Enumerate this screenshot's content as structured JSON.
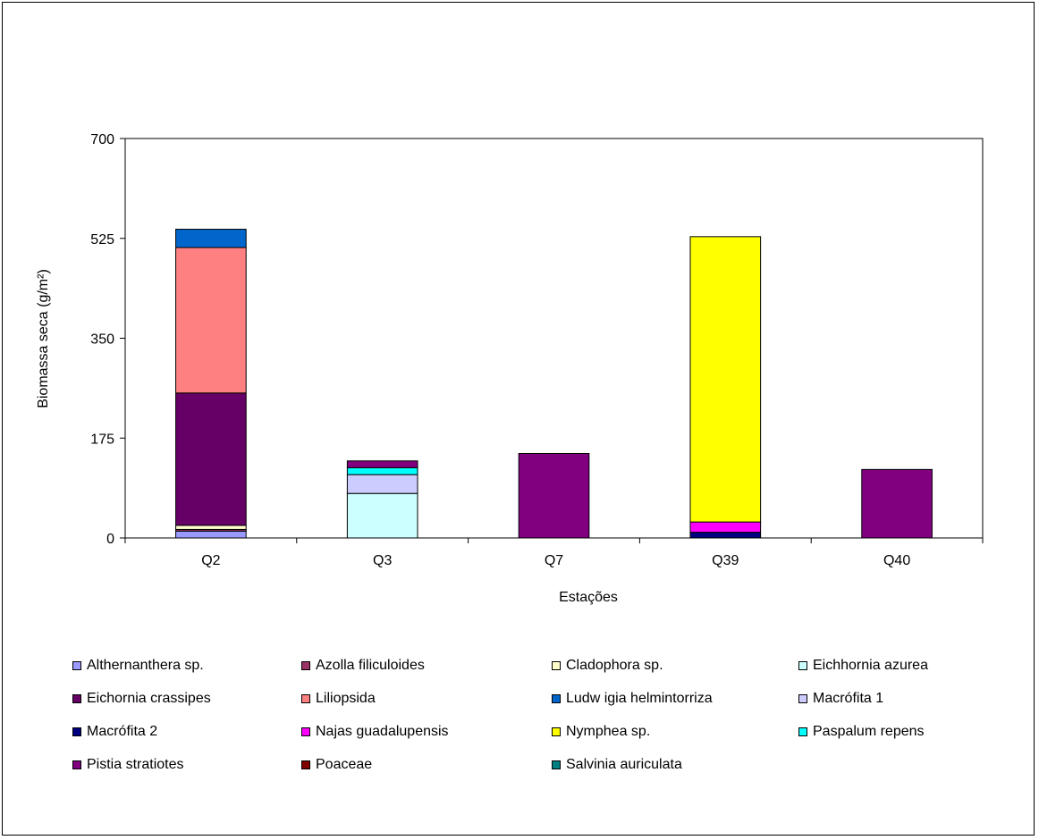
{
  "chart_data": {
    "type": "bar",
    "stacked": true,
    "title": "",
    "xlabel": "Estações",
    "ylabel": "Biomassa seca (g/m²)",
    "ylim": [
      0,
      700
    ],
    "yticks": [
      0,
      175,
      350,
      525,
      700
    ],
    "grid": false,
    "legend_position": "bottom",
    "categories": [
      "Q2",
      "Q3",
      "Q7",
      "Q39",
      "Q40"
    ],
    "series": [
      {
        "name": "Althernanthera sp.",
        "color": "#9999FF",
        "values": [
          12,
          0,
          0,
          0,
          0
        ]
      },
      {
        "name": "Azolla filiculoides",
        "color": "#993366",
        "values": [
          3,
          0,
          0,
          0,
          0
        ]
      },
      {
        "name": "Cladophora sp.",
        "color": "#FFFFCC",
        "values": [
          7,
          0,
          0,
          0,
          0
        ]
      },
      {
        "name": "Eichhornia azurea",
        "color": "#CCFFFF",
        "values": [
          0,
          78,
          0,
          0,
          0
        ]
      },
      {
        "name": "Eichornia crassipes",
        "color": "#660066",
        "values": [
          232,
          0,
          0,
          0,
          0
        ]
      },
      {
        "name": "Liliopsida",
        "color": "#FF8080",
        "values": [
          255,
          0,
          0,
          0,
          0
        ]
      },
      {
        "name": "Ludw igia helmintorriza",
        "color": "#0066CC",
        "values": [
          32,
          0,
          0,
          0,
          0
        ]
      },
      {
        "name": "Macrófita 1",
        "color": "#CCCCFF",
        "values": [
          0,
          33,
          0,
          0,
          0
        ]
      },
      {
        "name": "Macrófita 2",
        "color": "#000080",
        "values": [
          0,
          0,
          0,
          10,
          0
        ]
      },
      {
        "name": "Najas guadalupensis",
        "color": "#FF00FF",
        "values": [
          0,
          0,
          0,
          18,
          0
        ]
      },
      {
        "name": "Nymphea sp.",
        "color": "#FFFF00",
        "values": [
          0,
          0,
          0,
          500,
          0
        ]
      },
      {
        "name": "Paspalum repens",
        "color": "#00FFFF",
        "values": [
          0,
          12,
          0,
          0,
          0
        ]
      },
      {
        "name": "Pistia stratiotes",
        "color": "#800080",
        "values": [
          0,
          12,
          148,
          0,
          120
        ]
      },
      {
        "name": "Poaceae",
        "color": "#800000",
        "values": [
          0,
          0,
          0,
          0,
          0
        ]
      },
      {
        "name": "Salvinia auriculata",
        "color": "#008080",
        "values": [
          0,
          0,
          0,
          0,
          0
        ]
      }
    ]
  }
}
